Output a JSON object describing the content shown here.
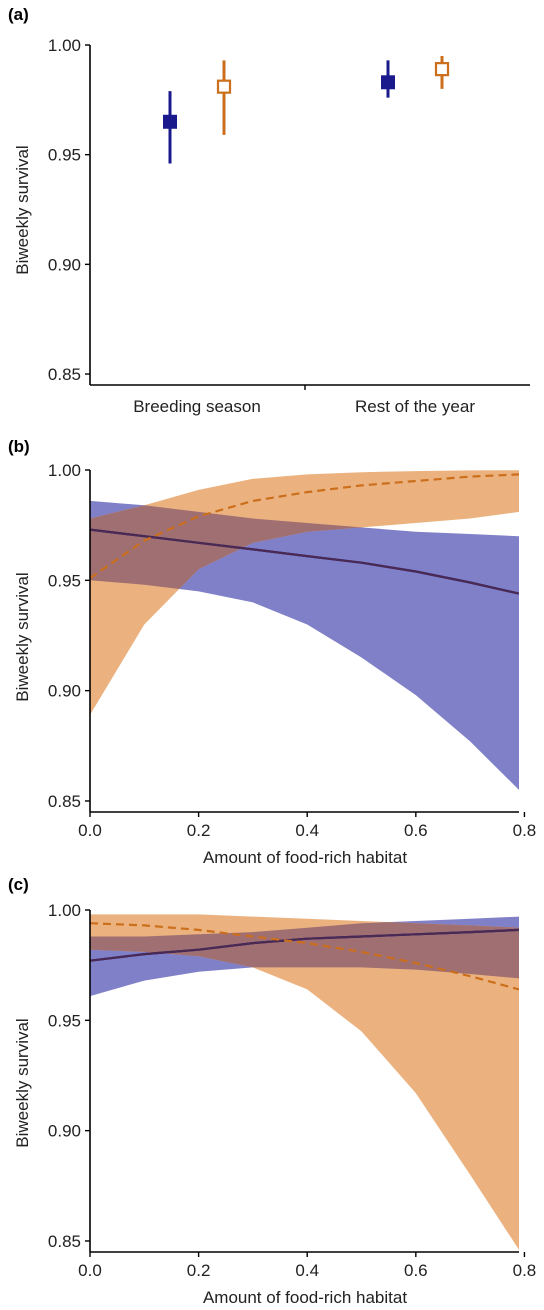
{
  "colors": {
    "blue": "#1a1a8c",
    "orange": "#cc6f1c",
    "blue_band": "#8080c8",
    "orange_band": "#ebb27f",
    "overlap_band": "#a06f72",
    "blue_line": "#141496",
    "overlap_line": "#4b2a52"
  },
  "chart_data": [
    {
      "type": "scatter",
      "panel_label": "(a)",
      "ylabel": "Biweekly survival",
      "xlabel": "",
      "categories": [
        "Breeding season",
        "Rest of the year"
      ],
      "ylim": [
        0.845,
        1.0
      ],
      "yticks": [
        0.85,
        0.9,
        0.95,
        1.0
      ],
      "ytick_labels": [
        "0.85",
        "0.90",
        "0.95",
        "1.00"
      ],
      "grid": false,
      "series": [
        {
          "marker": "filled-square",
          "color": "blue",
          "points": [
            {
              "category": "Breeding season",
              "y": 0.965,
              "low": 0.946,
              "high": 0.979
            },
            {
              "category": "Rest of the year",
              "y": 0.983,
              "low": 0.976,
              "high": 0.993
            }
          ]
        },
        {
          "marker": "open-square",
          "color": "orange",
          "points": [
            {
              "category": "Breeding season",
              "y": 0.981,
              "low": 0.959,
              "high": 0.993
            },
            {
              "category": "Rest of the year",
              "y": 0.989,
              "low": 0.98,
              "high": 0.995
            }
          ]
        }
      ]
    },
    {
      "type": "line",
      "panel_label": "(b)",
      "ylabel": "Biweekly survival",
      "xlabel": "Amount of food-rich habitat",
      "xlim": [
        0,
        0.79
      ],
      "ylim": [
        0.845,
        1.0
      ],
      "xticks": [
        0,
        0.2,
        0.4,
        0.6,
        0.8
      ],
      "xtick_labels": [
        "0.0",
        "0.2",
        "0.4",
        "0.6",
        "0.8"
      ],
      "yticks": [
        0.85,
        0.9,
        0.95,
        1.0
      ],
      "ytick_labels": [
        "0.85",
        "0.90",
        "0.95",
        "1.00"
      ],
      "grid": false,
      "series": [
        {
          "color": "blue",
          "style": "solid",
          "x": [
            0,
            0.1,
            0.2,
            0.3,
            0.4,
            0.5,
            0.6,
            0.7,
            0.79
          ],
          "y": [
            0.973,
            0.97,
            0.967,
            0.964,
            0.961,
            0.958,
            0.954,
            0.949,
            0.944
          ],
          "lower": [
            0.95,
            0.948,
            0.945,
            0.94,
            0.93,
            0.915,
            0.898,
            0.877,
            0.855
          ],
          "upper": [
            0.986,
            0.984,
            0.981,
            0.978,
            0.976,
            0.974,
            0.972,
            0.971,
            0.97
          ]
        },
        {
          "color": "orange",
          "style": "dashed",
          "x": [
            0,
            0.1,
            0.2,
            0.3,
            0.4,
            0.5,
            0.6,
            0.7,
            0.79
          ],
          "y": [
            0.951,
            0.968,
            0.979,
            0.986,
            0.99,
            0.993,
            0.995,
            0.997,
            0.998
          ],
          "lower": [
            0.889,
            0.93,
            0.955,
            0.967,
            0.972,
            0.974,
            0.976,
            0.978,
            0.981
          ],
          "upper": [
            0.978,
            0.984,
            0.991,
            0.996,
            0.998,
            0.999,
            0.9995,
            0.9998,
            0.9999
          ]
        }
      ]
    },
    {
      "type": "line",
      "panel_label": "(c)",
      "ylabel": "Biweekly survival",
      "xlabel": "Amount of food-rich habitat",
      "xlim": [
        0,
        0.79
      ],
      "ylim": [
        0.845,
        1.0
      ],
      "xticks": [
        0,
        0.2,
        0.4,
        0.6,
        0.8
      ],
      "xtick_labels": [
        "0.0",
        "0.2",
        "0.4",
        "0.6",
        "0.8"
      ],
      "yticks": [
        0.85,
        0.9,
        0.95,
        1.0
      ],
      "ytick_labels": [
        "0.85",
        "0.90",
        "0.95",
        "1.00"
      ],
      "grid": false,
      "series": [
        {
          "color": "blue",
          "style": "solid",
          "x": [
            0,
            0.1,
            0.2,
            0.3,
            0.4,
            0.5,
            0.6,
            0.7,
            0.79
          ],
          "y": [
            0.977,
            0.98,
            0.982,
            0.985,
            0.987,
            0.988,
            0.989,
            0.99,
            0.991
          ],
          "lower": [
            0.961,
            0.968,
            0.972,
            0.974,
            0.974,
            0.974,
            0.973,
            0.971,
            0.969
          ],
          "upper": [
            0.988,
            0.988,
            0.989,
            0.99,
            0.992,
            0.994,
            0.995,
            0.996,
            0.997
          ]
        },
        {
          "color": "orange",
          "style": "dashed",
          "x": [
            0,
            0.1,
            0.2,
            0.3,
            0.4,
            0.5,
            0.6,
            0.7,
            0.79
          ],
          "y": [
            0.994,
            0.993,
            0.991,
            0.988,
            0.985,
            0.981,
            0.976,
            0.97,
            0.964
          ],
          "lower": [
            0.982,
            0.981,
            0.979,
            0.974,
            0.964,
            0.945,
            0.917,
            0.88,
            0.846
          ],
          "upper": [
            0.998,
            0.998,
            0.998,
            0.997,
            0.996,
            0.995,
            0.994,
            0.993,
            0.992
          ]
        }
      ]
    }
  ]
}
